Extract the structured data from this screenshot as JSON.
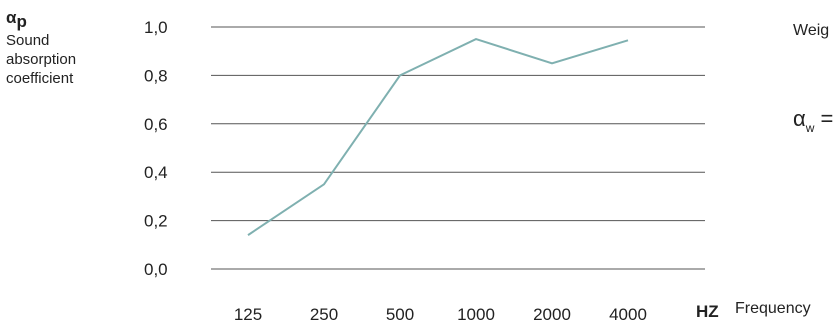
{
  "annotation": {
    "alpha_symbol": "α",
    "alpha_subscript": "p",
    "ylabel_lines": [
      "Sound",
      "absorption",
      "coefficient"
    ],
    "weighted_label": "Weig",
    "alpha_w_symbol": "α",
    "alpha_w_subscript": "w",
    "alpha_w_equals": "=",
    "hz_label": "HZ",
    "frequency_label": "Frequency"
  },
  "chart_data": {
    "type": "line",
    "categories": [
      "125",
      "250",
      "500",
      "1000",
      "2000",
      "4000"
    ],
    "series": [
      {
        "values": [
          0.14,
          0.35,
          0.8,
          0.95,
          0.85,
          0.945
        ]
      }
    ],
    "yticks": [
      "1,0",
      "0,8",
      "0,6",
      "0,4",
      "0,2",
      "0,0"
    ],
    "ylim": [
      0,
      1
    ],
    "grid": true,
    "colors": {
      "line": "#7fb0b0",
      "grid": "#555555"
    }
  }
}
